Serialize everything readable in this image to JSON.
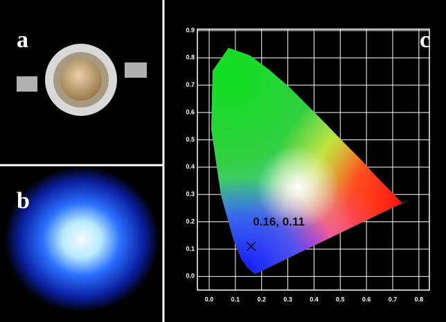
{
  "panel_labels": {
    "a": "a",
    "b": "b",
    "c": "c"
  },
  "chart_data": {
    "type": "scatter",
    "x": [
      0.16
    ],
    "values": [
      0.11
    ],
    "color": "#000000",
    "annotation": "0.16, 0.11",
    "xlim": [
      -0.045,
      0.84
    ],
    "ylim": [
      -0.05,
      0.905
    ],
    "xticks": [
      {
        "value": 0,
        "label": "0.0"
      },
      0.1,
      0.2,
      0.3,
      0.4,
      0.5,
      0.6,
      0.7,
      0.8
    ],
    "yticks": [
      {
        "value": 0,
        "label": "0.0"
      },
      0.1,
      0.2,
      0.3,
      0.4,
      0.5,
      0.6,
      0.7,
      0.8,
      0.9
    ],
    "grid": true
  }
}
